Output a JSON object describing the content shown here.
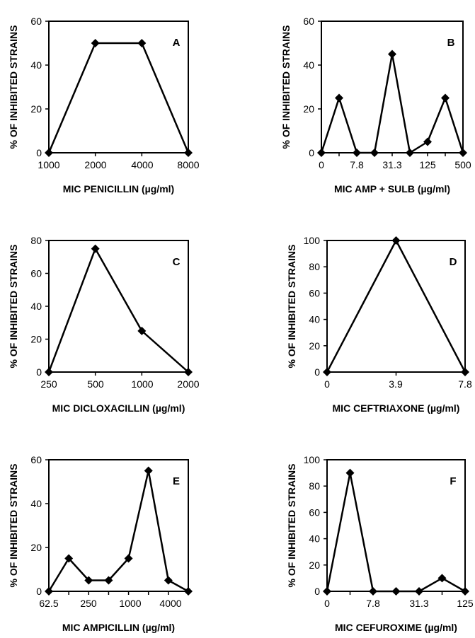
{
  "chart_data": [
    {
      "type": "line",
      "panel_label": "A",
      "ylabel": "% OF INHIBITED STRAINS",
      "xlabel": "MIC PENICILLIN (µg/ml)",
      "ylim": [
        0,
        60
      ],
      "yticks": [
        0,
        20,
        40,
        60
      ],
      "xticks": [
        "1000",
        "2000",
        "4000",
        "8000"
      ],
      "series": [
        {
          "x": [
            0,
            1,
            2,
            3
          ],
          "values": [
            0,
            50,
            50,
            0
          ]
        }
      ]
    },
    {
      "type": "line",
      "panel_label": "B",
      "ylabel": "% OF INHIBITED STRAINS",
      "xlabel": "MIC AMP + SULB (µg/ml)",
      "ylim": [
        0,
        60
      ],
      "yticks": [
        0,
        20,
        40,
        60
      ],
      "xticks": [
        "0",
        "7.8",
        "31.3",
        "125",
        "500"
      ],
      "series": [
        {
          "x": [
            0,
            1,
            2,
            3,
            4,
            5,
            6,
            7,
            8
          ],
          "values": [
            0,
            25,
            0,
            0,
            45,
            0,
            5,
            25,
            0
          ]
        }
      ]
    },
    {
      "type": "line",
      "panel_label": "C",
      "ylabel": "% OF INHIBITED STRAINS",
      "xlabel": "MIC DICLOXACILLIN (µg/ml)",
      "ylim": [
        0,
        80
      ],
      "yticks": [
        0,
        20,
        40,
        60,
        80
      ],
      "xticks": [
        "250",
        "500",
        "1000",
        "2000"
      ],
      "series": [
        {
          "x": [
            0,
            1,
            2,
            3
          ],
          "values": [
            0,
            75,
            25,
            0
          ]
        }
      ]
    },
    {
      "type": "line",
      "panel_label": "D",
      "ylabel": "% OF INHIBITED STRAINS",
      "xlabel": "MIC CEFTRIAXONE (µg/ml)",
      "ylim": [
        0,
        100
      ],
      "yticks": [
        0,
        20,
        40,
        60,
        80,
        100
      ],
      "xticks": [
        "0",
        "3.9",
        "7.8"
      ],
      "series": [
        {
          "x": [
            0,
            1,
            2
          ],
          "values": [
            0,
            100,
            0
          ]
        }
      ]
    },
    {
      "type": "line",
      "panel_label": "E",
      "ylabel": "% OF INHIBITED STRAINS",
      "xlabel": "MIC AMPICILLIN (µg/ml)",
      "ylim": [
        0,
        60
      ],
      "yticks": [
        0,
        20,
        40,
        60
      ],
      "xticks": [
        "62.5",
        "250",
        "1000",
        "4000"
      ],
      "series": [
        {
          "x": [
            0,
            1,
            2,
            3,
            4,
            5,
            6,
            7
          ],
          "values": [
            0,
            15,
            5,
            5,
            15,
            55,
            5,
            0
          ]
        }
      ]
    },
    {
      "type": "line",
      "panel_label": "F",
      "ylabel": "% OF INHIBITED STRAINS",
      "xlabel": "MIC CEFUROXIME (µg/ml)",
      "ylim": [
        0,
        100
      ],
      "yticks": [
        0,
        20,
        40,
        60,
        80,
        100
      ],
      "xticks": [
        "0",
        "7.8",
        "31.3",
        "125"
      ],
      "series": [
        {
          "x": [
            0,
            1,
            2,
            3,
            4,
            5,
            6
          ],
          "values": [
            0,
            90,
            0,
            0,
            0,
            10,
            0
          ]
        }
      ]
    }
  ]
}
